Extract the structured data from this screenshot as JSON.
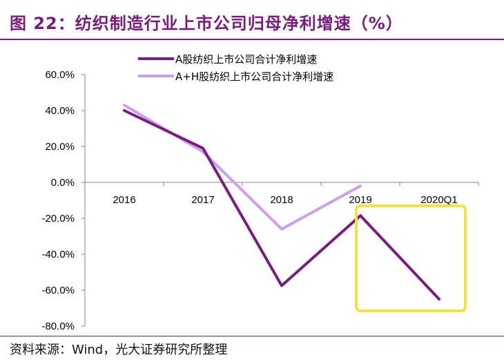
{
  "figure": {
    "title": "图 22：纺织制造行业上市公司归母净利增速（%）",
    "source": "资料来源：Wind，光大证券研究所整理"
  },
  "chart_data": {
    "type": "line",
    "title": "纺织制造行业上市公司归母净利增速（%）",
    "categories": [
      "2016",
      "2017",
      "2018",
      "2019",
      "2020Q1"
    ],
    "ylim": [
      -80,
      60
    ],
    "ytick_values": [
      60,
      40,
      20,
      0,
      -20,
      -40,
      -60,
      -80
    ],
    "ytick_labels": [
      "60.0%",
      "40.0%",
      "20.0%",
      "0.0%",
      "-20.0%",
      "-40.0%",
      "-60.0%",
      "-80.0%"
    ],
    "legend_position": "top",
    "series": [
      {
        "name": "A股纺织上市公司合计净利增速",
        "color": "#7b1a80",
        "values": [
          40.0,
          19.0,
          -57.5,
          -18.5,
          -65.0
        ]
      },
      {
        "name": "A+H股纺织上市公司合计净利增速",
        "color": "#cc9ef2",
        "values": [
          43.0,
          17.0,
          -26.0,
          -2.0,
          null
        ]
      }
    ],
    "annotations": [
      {
        "type": "highlight-box",
        "color": "#f2e33b",
        "target_category": "2020Q1"
      }
    ]
  }
}
